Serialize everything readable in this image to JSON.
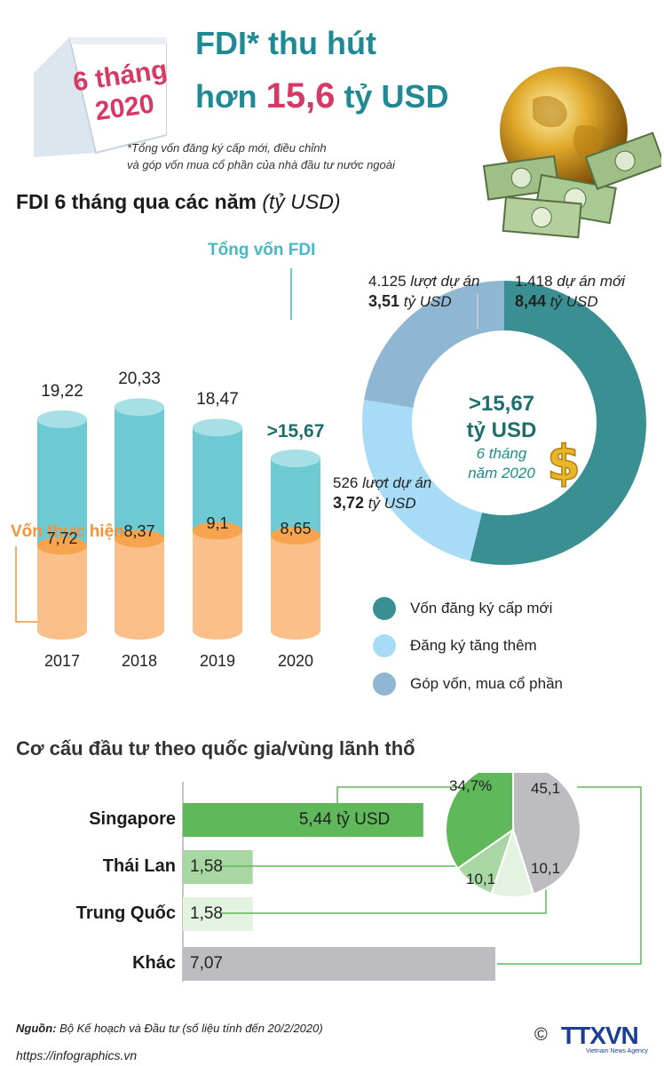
{
  "header": {
    "tag_line1": "6 tháng",
    "tag_line2": "2020",
    "title_line1": "FDI* thu hút",
    "title_line2_pre": "hơn ",
    "title_line2_num": "15,6",
    "title_line2_post": " tỷ USD",
    "footnote_line1": "*Tổng vốn đăng ký cấp mới, điều chỉnh",
    "footnote_line2": "và góp vốn mua cổ phần của nhà đầu tư nước ngoài"
  },
  "section1": {
    "heading": "FDI 6 tháng qua các năm",
    "heading_unit": "(tỷ USD)",
    "label_total": "Tổng vốn FDI",
    "label_realized": "Vốn thực hiện"
  },
  "chart_data": [
    {
      "type": "bar",
      "categories": [
        "2017",
        "2018",
        "2019",
        "2020"
      ],
      "series": [
        {
          "name": "Tổng vốn FDI",
          "values": [
            19.22,
            20.33,
            18.47,
            15.67
          ],
          "labels": [
            "19,22",
            "20,33",
            "18,47",
            ">15,67"
          ],
          "color": "#6dc9d2"
        },
        {
          "name": "Vốn thực hiện",
          "values": [
            7.72,
            8.37,
            9.1,
            8.65
          ],
          "labels": [
            "7,72",
            "8,37",
            "9,1",
            "8,65"
          ],
          "color": "#fbc08a"
        }
      ],
      "ylim": [
        0,
        21
      ]
    },
    {
      "type": "pie",
      "categories": [
        "Vốn đăng ký cấp mới",
        "Đăng ký tăng thêm",
        "Góp vốn, mua cổ phần"
      ],
      "values": [
        8.44,
        3.72,
        3.51
      ],
      "colors": [
        "#3a8f92",
        "#a8dcf6",
        "#8fb6d3"
      ],
      "center_value": ">15,67",
      "center_unit": "tỷ USD",
      "center_sub1": "6 tháng",
      "center_sub2": "năm 2020",
      "annotations": [
        {
          "count": "1.418",
          "count_text": " dự án mới",
          "value": "8,44",
          "unit": " tỷ USD"
        },
        {
          "count": "526",
          "count_text": " lượt dự án",
          "value": "3,72",
          "unit": " tỷ USD"
        },
        {
          "count": "4.125",
          "count_text": " lượt dự án",
          "value": "3,51",
          "unit": " tỷ USD"
        }
      ],
      "legend": [
        "Vốn đăng ký cấp mới",
        "Đăng ký tăng thêm",
        "Góp vốn, mua cổ phần"
      ]
    },
    {
      "type": "bar",
      "categories": [
        "Singapore",
        "Thái Lan",
        "Trung Quốc",
        "Khác"
      ],
      "values": [
        5.44,
        1.58,
        1.58,
        7.07
      ],
      "labels": [
        "5,44 tỷ USD",
        "1,58",
        "1,58",
        "7,07"
      ],
      "colors": [
        "#5fb85a",
        "#a9d7a3",
        "#e4f2e2",
        "#bdbcc0"
      ],
      "xlim": [
        0,
        7.5
      ]
    },
    {
      "type": "pie",
      "categories": [
        "Singapore",
        "Thái Lan",
        "Trung Quốc",
        "Khác"
      ],
      "values": [
        34.7,
        10.1,
        10.1,
        45.1
      ],
      "labels": [
        "34,7%",
        "10,1",
        "10,1",
        "45,1"
      ],
      "colors": [
        "#5fb85a",
        "#a9d7a3",
        "#e4f2e2",
        "#bdbcc0"
      ]
    }
  ],
  "section2": {
    "heading": "Cơ cấu đầu tư theo quốc gia/vùng lãnh thổ"
  },
  "footer": {
    "source_label": "Nguồn:",
    "source_text": " Bộ Kế hoạch và Đầu tư (số liệu tính đến 20/2/2020)",
    "url": "https://infographics.vn",
    "copyright": "©",
    "logo": "TTXVN",
    "logo_sub": "Vietnam News Agency"
  }
}
